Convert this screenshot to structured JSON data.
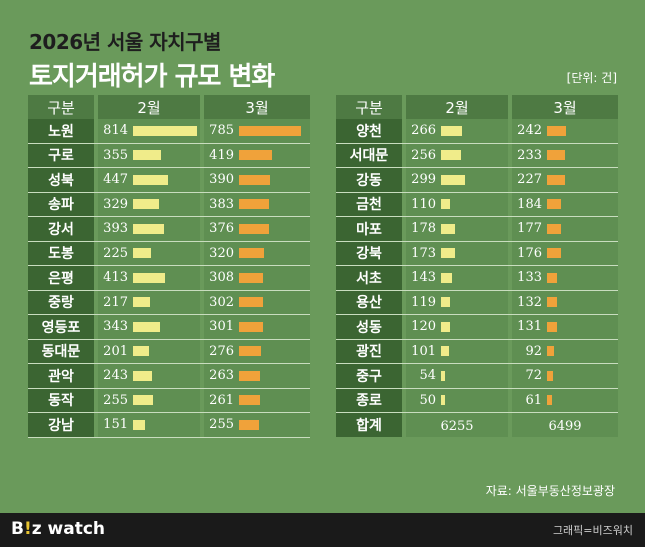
{
  "header": {
    "title_line1": "2026년 서울 자치구별",
    "title_line2": "토지거래허가 규모 변화",
    "unit": "[단위: 건]"
  },
  "table_headers": {
    "district": "구분",
    "feb": "2월",
    "mar": "3월"
  },
  "total_label": "합계",
  "footer": {
    "source": "자료: 서울부동산정보광장",
    "brand_prefix": "B",
    "brand_accent": "!",
    "brand_suffix": "z watch",
    "credit": "그래픽=비즈워치"
  },
  "colors": {
    "background": "#6a9a5b",
    "feb_bar": "#f0ec8a",
    "mar_bar": "#f0a23a",
    "label_cell": "#3b6532",
    "header_cell": "#4e7a43"
  },
  "chart_data": {
    "type": "bar",
    "series": [
      {
        "name": "2월",
        "values": [
          814,
          355,
          447,
          329,
          393,
          225,
          413,
          217,
          343,
          201,
          243,
          255,
          151,
          266,
          256,
          299,
          110,
          178,
          173,
          143,
          119,
          120,
          101,
          54,
          50
        ]
      },
      {
        "name": "3월",
        "values": [
          785,
          419,
          390,
          383,
          376,
          320,
          308,
          302,
          301,
          276,
          263,
          261,
          255,
          242,
          233,
          227,
          184,
          177,
          176,
          133,
          132,
          131,
          92,
          72,
          61
        ]
      }
    ],
    "categories": [
      "노원",
      "구로",
      "성북",
      "송파",
      "강서",
      "도봉",
      "은평",
      "중랑",
      "영등포",
      "동대문",
      "관악",
      "동작",
      "강남",
      "양천",
      "서대문",
      "강동",
      "금천",
      "마포",
      "강북",
      "서초",
      "용산",
      "성동",
      "광진",
      "중구",
      "종로"
    ],
    "totals": {
      "feb": 6255,
      "mar": 6499
    },
    "left_count": 13
  }
}
